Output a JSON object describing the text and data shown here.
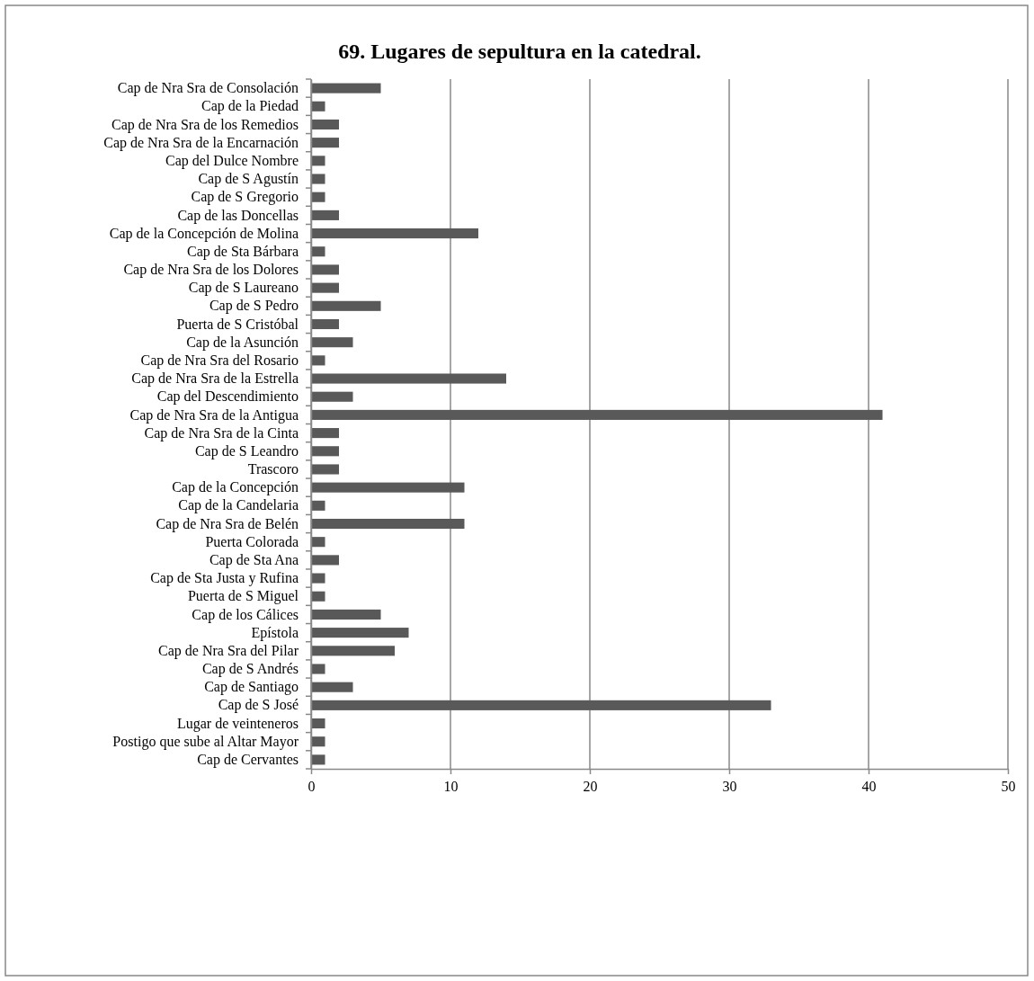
{
  "chart_data": {
    "type": "bar",
    "orientation": "horizontal",
    "title": "69. Lugares de sepultura en la catedral.",
    "categories": [
      "Cap de Nra Sra de Consolación",
      "Cap de la Piedad",
      "Cap de Nra Sra de los Remedios",
      "Cap de Nra Sra de la Encarnación",
      "Cap del Dulce Nombre",
      "Cap de S Agustín",
      "Cap de S Gregorio",
      "Cap de las Doncellas",
      "Cap de la Concepción de Molina",
      "Cap de Sta Bárbara",
      "Cap de Nra Sra de los Dolores",
      "Cap de S Laureano",
      "Cap de S Pedro",
      "Puerta de S Cristóbal",
      "Cap de la Asunción",
      "Cap de Nra Sra del Rosario",
      "Cap de Nra Sra de la Estrella",
      "Cap del Descendimiento",
      "Cap de Nra Sra de la Antigua",
      "Cap de Nra Sra de la Cinta",
      "Cap de S Leandro",
      "Trascoro",
      "Cap de la Concepción",
      "Cap de la Candelaria",
      "Cap de Nra Sra de Belén",
      "Puerta Colorada",
      "Cap de Sta Ana",
      "Cap de Sta Justa y Rufina",
      "Puerta de S Miguel",
      "Cap de los Cálices",
      "Epístola",
      "Cap de Nra Sra del Pilar",
      "Cap de S Andrés",
      "Cap de Santiago",
      "Cap de S José",
      "Lugar de veinteneros",
      "Postigo que sube al Altar Mayor",
      "Cap de Cervantes"
    ],
    "values": [
      5,
      1,
      2,
      2,
      1,
      1,
      1,
      2,
      12,
      1,
      2,
      2,
      5,
      2,
      3,
      1,
      14,
      3,
      41,
      2,
      2,
      2,
      11,
      1,
      11,
      1,
      2,
      1,
      1,
      5,
      7,
      6,
      1,
      3,
      33,
      1,
      1,
      1
    ],
    "color": "#595959",
    "xlim": [
      0,
      50
    ],
    "xticks": [
      0,
      10,
      20,
      30,
      40,
      50
    ],
    "grid": "x"
  }
}
